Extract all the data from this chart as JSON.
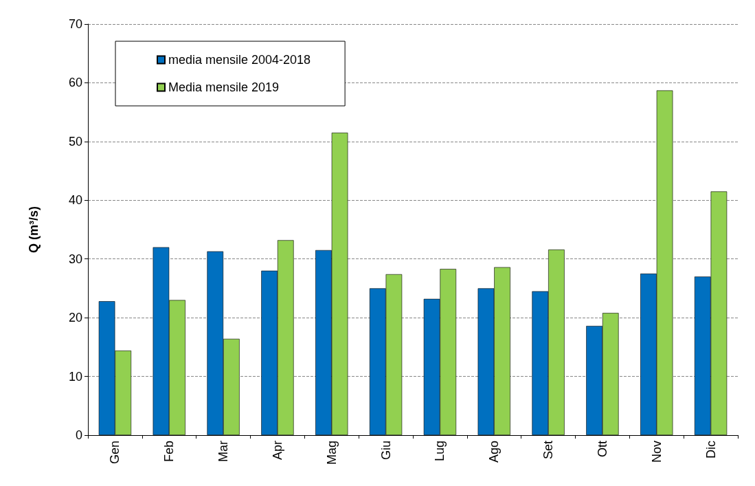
{
  "chart_data": {
    "type": "bar",
    "ylabel": "Q (m³/s)",
    "categories": [
      "Gen",
      "Feb",
      "Mar",
      "Apr",
      "Mag",
      "Giu",
      "Lug",
      "Ago",
      "Set",
      "Ott",
      "Nov",
      "Dic"
    ],
    "series": [
      {
        "name": "media mensile 2004-2018",
        "color": "#0070c0",
        "values": [
          22.8,
          32.0,
          31.3,
          28.0,
          31.5,
          25.0,
          23.2,
          25.0,
          24.5,
          18.6,
          27.5,
          27.0
        ]
      },
      {
        "name": "Media mensile 2019",
        "color": "#92d050",
        "values": [
          14.4,
          23.0,
          16.4,
          33.2,
          51.5,
          27.4,
          28.3,
          28.6,
          31.6,
          20.8,
          58.7,
          41.5
        ]
      }
    ],
    "ylim": [
      0,
      70
    ],
    "yticks": [
      0,
      10,
      20,
      30,
      40,
      50,
      60,
      70
    ],
    "grid": "y",
    "legend": "top left"
  }
}
